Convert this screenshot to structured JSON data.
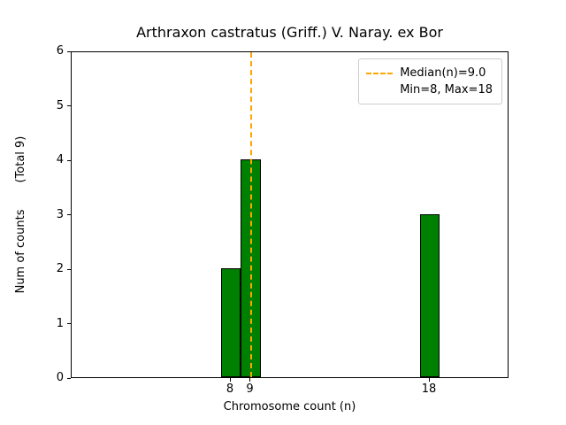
{
  "chart_data": {
    "type": "bar",
    "title": "Arthraxon castratus (Griff.) V. Naray. ex Bor",
    "xlabel": "Chromosome count (n)",
    "ylabel": "Num of counts",
    "ylabel_note": "(Total 9)",
    "categories": [
      8,
      9,
      18
    ],
    "values": [
      2,
      4,
      3
    ],
    "bar_width": 1,
    "bar_color": "#008000",
    "bar_edge_color": "#000000",
    "median_value": 9.0,
    "median_line_color": "#FFA500",
    "min_value": 8,
    "max_value": 18,
    "legend": {
      "median_label": "Median(n)=9.0",
      "minmax_label": "Min=8, Max=18",
      "position": "upper right"
    },
    "xlim": [
      0,
      22
    ],
    "ylim": [
      0,
      6
    ],
    "xticks": [
      8,
      9,
      18
    ],
    "yticks": [
      0,
      1,
      2,
      3,
      4,
      5,
      6
    ],
    "grid": false
  }
}
